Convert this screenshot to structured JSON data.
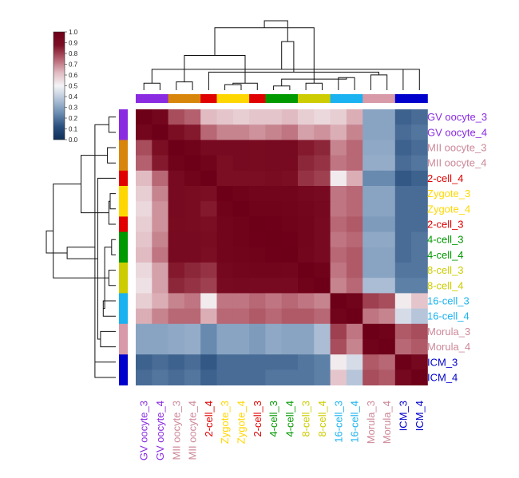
{
  "chart_data": {
    "type": "heatmap",
    "samples": [
      {
        "label": "GV oocyte_3",
        "color": "#8a2be2"
      },
      {
        "label": "GV oocyte_4",
        "color": "#8a2be2"
      },
      {
        "label": "MII oocyte_3",
        "color": "#cc8899"
      },
      {
        "label": "MII oocyte_4",
        "color": "#cc8899"
      },
      {
        "label": "2-cell_4",
        "color": "#e00000"
      },
      {
        "label": "Zygote_3",
        "color": "#ffd700"
      },
      {
        "label": "Zygote_4",
        "color": "#ffd700"
      },
      {
        "label": "2-cell_3",
        "color": "#e00000"
      },
      {
        "label": "4-cell_3",
        "color": "#009900"
      },
      {
        "label": "4-cell_4",
        "color": "#009900"
      },
      {
        "label": "8-cell_3",
        "color": "#cccc00"
      },
      {
        "label": "8-cell_4",
        "color": "#cccc00"
      },
      {
        "label": "16-cell_3",
        "color": "#1ab2f0"
      },
      {
        "label": "16-cell_4",
        "color": "#1ab2f0"
      },
      {
        "label": "Morula_3",
        "color": "#cc8899"
      },
      {
        "label": "Morula_4",
        "color": "#cc8899"
      },
      {
        "label": "ICM_3",
        "color": "#0000cc"
      },
      {
        "label": "ICM_4",
        "color": "#0000cc"
      }
    ],
    "bar_colors": [
      "#8a2be2",
      "#8a2be2",
      "#d8860b",
      "#d8860b",
      "#e00000",
      "#ffd700",
      "#ffd700",
      "#e00000",
      "#009900",
      "#009900",
      "#cccc00",
      "#cccc00",
      "#1ab2f0",
      "#1ab2f0",
      "#d89aa8",
      "#d89aa8",
      "#0000cc",
      "#0000cc"
    ],
    "matrix": [
      [
        1.0,
        0.95,
        0.78,
        0.75,
        0.62,
        0.6,
        0.58,
        0.6,
        0.6,
        0.62,
        0.58,
        0.56,
        0.58,
        0.64,
        0.3,
        0.3,
        0.16,
        0.18
      ],
      [
        0.95,
        1.0,
        0.88,
        0.86,
        0.74,
        0.7,
        0.7,
        0.68,
        0.7,
        0.72,
        0.66,
        0.68,
        0.64,
        0.7,
        0.3,
        0.3,
        0.18,
        0.2
      ],
      [
        0.78,
        0.88,
        1.0,
        0.98,
        0.92,
        0.92,
        0.92,
        0.91,
        0.92,
        0.92,
        0.86,
        0.84,
        0.7,
        0.74,
        0.31,
        0.31,
        0.16,
        0.18
      ],
      [
        0.75,
        0.86,
        0.98,
        1.0,
        0.97,
        0.88,
        0.92,
        0.91,
        0.92,
        0.92,
        0.84,
        0.82,
        0.72,
        0.74,
        0.32,
        0.32,
        0.18,
        0.2
      ],
      [
        0.62,
        0.74,
        0.92,
        0.97,
        1.0,
        0.88,
        0.88,
        0.88,
        0.9,
        0.88,
        0.82,
        0.8,
        0.52,
        0.64,
        0.24,
        0.24,
        0.14,
        0.16
      ],
      [
        0.58,
        0.7,
        0.92,
        0.9,
        0.88,
        1.0,
        0.98,
        0.96,
        0.96,
        0.96,
        0.94,
        0.92,
        0.72,
        0.74,
        0.3,
        0.3,
        0.18,
        0.18
      ],
      [
        0.56,
        0.68,
        0.92,
        0.9,
        0.86,
        0.98,
        1.0,
        0.98,
        0.98,
        0.97,
        0.95,
        0.93,
        0.72,
        0.74,
        0.3,
        0.3,
        0.18,
        0.18
      ],
      [
        0.58,
        0.68,
        0.91,
        0.9,
        0.88,
        0.96,
        0.98,
        1.0,
        0.99,
        0.98,
        0.96,
        0.92,
        0.74,
        0.76,
        0.28,
        0.28,
        0.18,
        0.18
      ],
      [
        0.6,
        0.7,
        0.92,
        0.92,
        0.9,
        0.96,
        0.98,
        0.99,
        1.0,
        0.99,
        0.96,
        0.92,
        0.72,
        0.74,
        0.31,
        0.31,
        0.18,
        0.2
      ],
      [
        0.62,
        0.72,
        0.92,
        0.92,
        0.88,
        0.96,
        0.97,
        0.98,
        0.99,
        1.0,
        0.95,
        0.92,
        0.74,
        0.76,
        0.3,
        0.3,
        0.18,
        0.2
      ],
      [
        0.56,
        0.66,
        0.86,
        0.84,
        0.82,
        0.94,
        0.95,
        0.96,
        0.96,
        0.95,
        1.0,
        0.98,
        0.72,
        0.76,
        0.3,
        0.3,
        0.2,
        0.2
      ],
      [
        0.54,
        0.66,
        0.84,
        0.82,
        0.8,
        0.92,
        0.93,
        0.92,
        0.92,
        0.92,
        0.98,
        1.0,
        0.7,
        0.74,
        0.36,
        0.36,
        0.22,
        0.22
      ],
      [
        0.58,
        0.64,
        0.7,
        0.72,
        0.52,
        0.72,
        0.72,
        0.74,
        0.72,
        0.74,
        0.72,
        0.7,
        1.0,
        0.97,
        0.8,
        0.78,
        0.52,
        0.6
      ],
      [
        0.64,
        0.7,
        0.74,
        0.74,
        0.64,
        0.74,
        0.74,
        0.76,
        0.74,
        0.76,
        0.76,
        0.74,
        0.97,
        1.0,
        0.72,
        0.7,
        0.44,
        0.38
      ],
      [
        0.3,
        0.3,
        0.31,
        0.32,
        0.24,
        0.3,
        0.3,
        0.28,
        0.31,
        0.3,
        0.3,
        0.36,
        0.8,
        0.72,
        1.0,
        0.98,
        0.76,
        0.78
      ],
      [
        0.3,
        0.3,
        0.31,
        0.32,
        0.24,
        0.3,
        0.3,
        0.28,
        0.31,
        0.3,
        0.3,
        0.36,
        0.78,
        0.7,
        0.98,
        1.0,
        0.74,
        0.76
      ],
      [
        0.16,
        0.18,
        0.16,
        0.18,
        0.14,
        0.18,
        0.18,
        0.18,
        0.18,
        0.18,
        0.2,
        0.22,
        0.52,
        0.44,
        0.76,
        0.74,
        1.0,
        0.94
      ],
      [
        0.18,
        0.2,
        0.18,
        0.2,
        0.16,
        0.18,
        0.18,
        0.18,
        0.2,
        0.2,
        0.2,
        0.22,
        0.6,
        0.38,
        0.78,
        0.76,
        0.94,
        1.0
      ]
    ],
    "color_scale": {
      "min": 0.0,
      "max": 1.0,
      "ticks": [
        "0.0",
        "0.1",
        "0.2",
        "0.3",
        "0.4",
        "0.5",
        "0.6",
        "0.7",
        "0.8",
        "0.9",
        "1.0"
      ],
      "stops": [
        "#0d2f57",
        "#2b5180",
        "#6d8fb3",
        "#b3c3d8",
        "#f4f4f6",
        "#e0b9c0",
        "#b4606e",
        "#7d0f24",
        "#6d0018"
      ]
    },
    "dendrogram_links": [
      [
        0,
        1,
        0.1
      ],
      [
        2,
        3,
        0.12
      ],
      [
        5,
        6,
        0.08
      ],
      [
        8,
        9,
        0.06
      ],
      [
        10,
        11,
        0.1
      ],
      [
        12,
        13,
        0.18
      ],
      [
        14,
        15,
        0.22
      ],
      [
        16,
        17,
        0.3
      ],
      [
        7,
        20,
        0.1
      ],
      [
        21,
        23,
        0.16
      ],
      [
        4,
        24,
        0.26
      ],
      [
        18,
        25,
        0.3
      ],
      [
        19,
        26,
        0.5
      ],
      [
        27,
        22,
        0.56
      ],
      [
        28,
        29,
        0.7
      ],
      [
        30,
        31,
        0.9
      ],
      [
        32,
        33,
        1.0
      ]
    ]
  }
}
